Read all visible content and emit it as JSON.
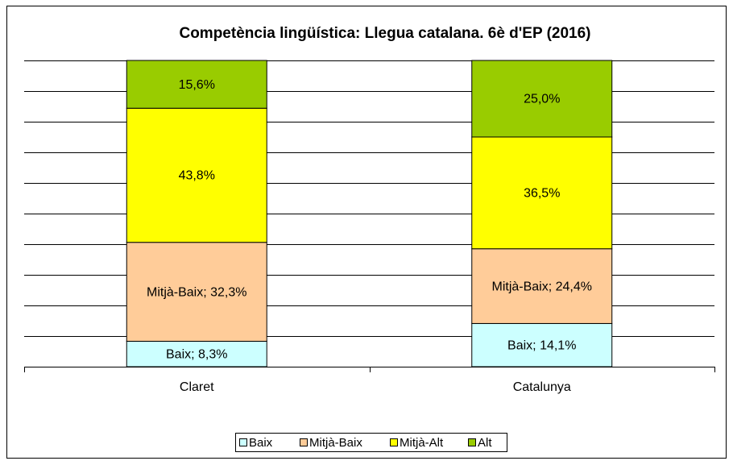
{
  "chart_data": {
    "type": "stacked_bar",
    "title": "Competència  lingüística: Llegua catalana. 6è d'EP (2016)",
    "categories": [
      "Claret",
      "Catalunya"
    ],
    "series": [
      {
        "name": "Baix",
        "color": "#ccffff",
        "values": [
          8.3,
          14.1
        ],
        "value_labels": [
          "Baix; 8,3%",
          "Baix; 14,1%"
        ]
      },
      {
        "name": "Mitjà-Baix",
        "color": "#ffcc99",
        "values": [
          32.3,
          24.4
        ],
        "value_labels": [
          "Mitjà-Baix; 32,3%",
          "Mitjà-Baix; 24,4%"
        ]
      },
      {
        "name": "Mitjà-Alt",
        "color": "#ffff00",
        "values": [
          43.8,
          36.5
        ],
        "value_labels": [
          "43,8%",
          "36,5%"
        ]
      },
      {
        "name": "Alt",
        "color": "#99cc00",
        "values": [
          15.6,
          25.0
        ],
        "value_labels": [
          "15,6%",
          "25,0%"
        ]
      }
    ],
    "ylim": [
      0,
      100
    ],
    "yticks": [
      0,
      10,
      20,
      30,
      40,
      50,
      60,
      70,
      80,
      90,
      100
    ],
    "grid": true,
    "legend": "bottom"
  }
}
